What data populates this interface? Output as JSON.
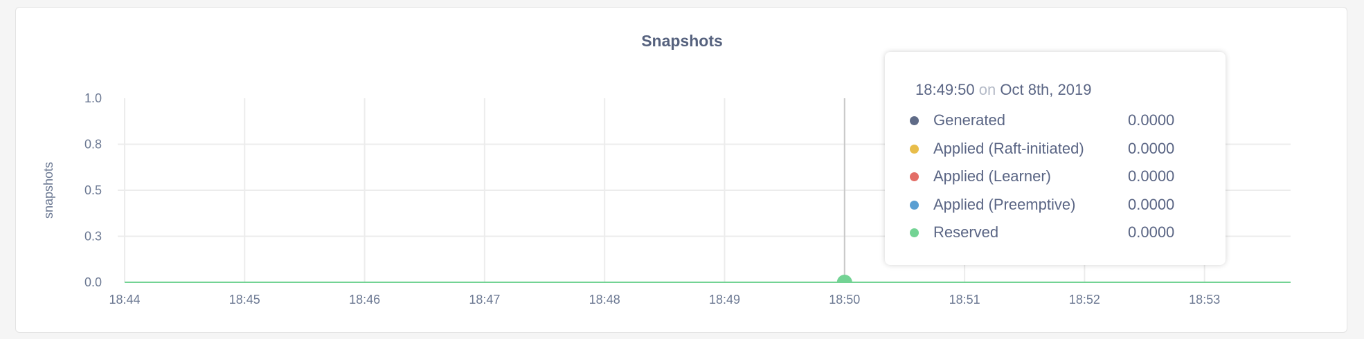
{
  "chart_data": {
    "type": "line",
    "title": "Snapshots",
    "ylabel": "snapshots",
    "xlabel": "",
    "ylim": [
      0,
      1.0
    ],
    "y_ticks": [
      "0.0",
      "0.3",
      "0.5",
      "0.8",
      "1.0"
    ],
    "y_tick_values": [
      0,
      0.25,
      0.5,
      0.75,
      1.0
    ],
    "x_ticks": [
      "18:44",
      "18:45",
      "18:46",
      "18:47",
      "18:48",
      "18:49",
      "18:50",
      "18:51",
      "18:52",
      "18:53"
    ],
    "grid": true,
    "series": [
      {
        "name": "Generated",
        "color": "#5f6b87",
        "values": "all 0"
      },
      {
        "name": "Applied (Raft-initiated)",
        "color": "#e8bd4a",
        "values": "all 0"
      },
      {
        "name": "Applied (Learner)",
        "color": "#e36e67",
        "values": "all 0"
      },
      {
        "name": "Applied (Preemptive)",
        "color": "#5a9fd2",
        "values": "all 0"
      },
      {
        "name": "Reserved",
        "color": "#73d394",
        "values": "all 0"
      }
    ],
    "hover_x": "18:50"
  },
  "tooltip": {
    "time": "18:49:50",
    "on": "on",
    "date": "Oct 8th, 2019",
    "rows": [
      {
        "label": "Generated",
        "value": "0.0000",
        "color": "#5f6b87"
      },
      {
        "label": "Applied (Raft-initiated)",
        "value": "0.0000",
        "color": "#e8bd4a"
      },
      {
        "label": "Applied (Learner)",
        "value": "0.0000",
        "color": "#e36e67"
      },
      {
        "label": "Applied (Preemptive)",
        "value": "0.0000",
        "color": "#5a9fd2"
      },
      {
        "label": "Reserved",
        "value": "0.0000",
        "color": "#73d394"
      }
    ]
  }
}
